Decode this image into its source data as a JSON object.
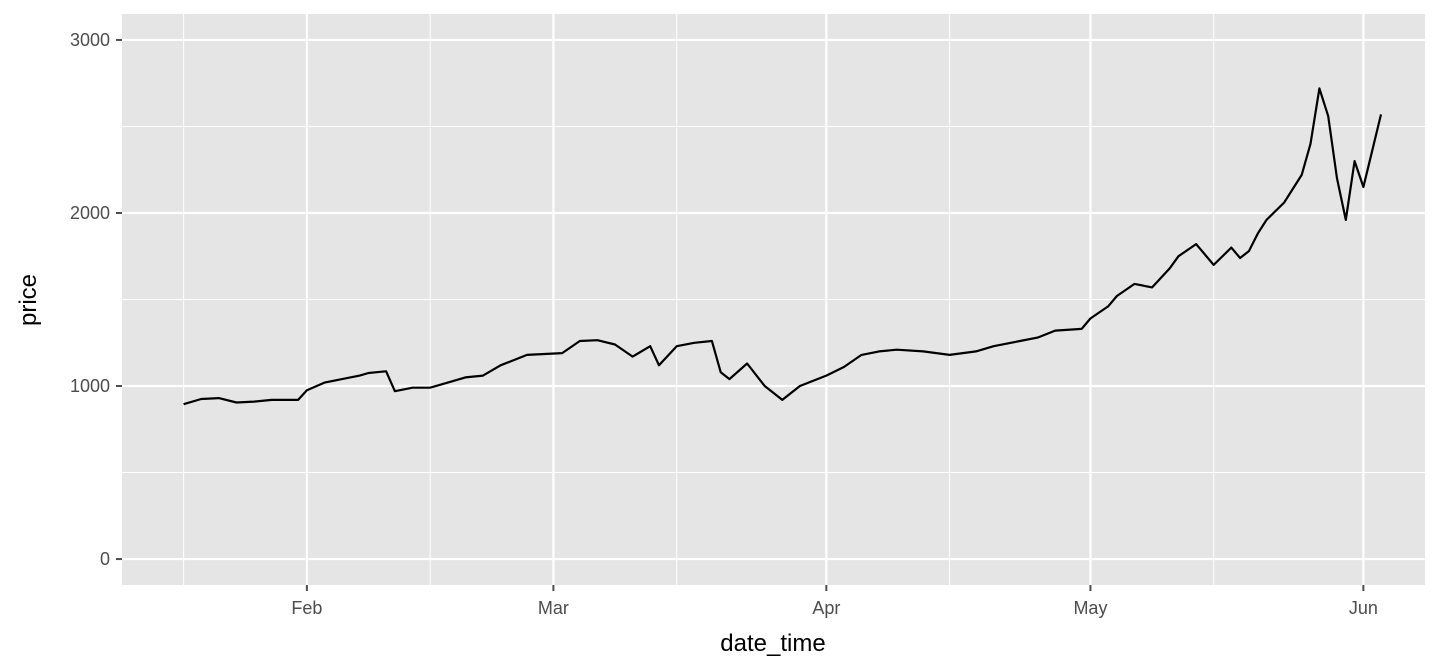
{
  "chart_data": {
    "type": "line",
    "xlabel": "date_time",
    "ylabel": "price",
    "xlim": [
      "2021-01-11",
      "2021-06-08"
    ],
    "ylim": [
      -150,
      3150
    ],
    "x_ticks": [
      {
        "date": "2021-02-01",
        "label": "Feb"
      },
      {
        "date": "2021-03-01",
        "label": "Mar"
      },
      {
        "date": "2021-04-01",
        "label": "Apr"
      },
      {
        "date": "2021-05-01",
        "label": "May"
      },
      {
        "date": "2021-06-01",
        "label": "Jun"
      }
    ],
    "x_minor_ticks": [
      "2021-01-18",
      "2021-02-15",
      "2021-03-15",
      "2021-04-15",
      "2021-05-15"
    ],
    "y_ticks": [
      0,
      1000,
      2000,
      3000
    ],
    "y_minor_ticks": [
      500,
      1500,
      2500
    ],
    "grid": true,
    "legend": "none",
    "colors": {
      "panel": "#e5e5e5",
      "grid": "#ffffff",
      "line": "#000000",
      "tick": "#4d4d4d"
    },
    "series": [
      {
        "x": [
          "2021-01-18",
          "2021-01-20",
          "2021-01-22",
          "2021-01-24",
          "2021-01-26",
          "2021-01-28",
          "2021-01-31",
          "2021-02-01",
          "2021-02-03",
          "2021-02-05",
          "2021-02-07",
          "2021-02-08",
          "2021-02-10",
          "2021-02-11",
          "2021-02-13",
          "2021-02-15",
          "2021-02-17",
          "2021-02-19",
          "2021-02-21",
          "2021-02-23",
          "2021-02-26",
          "2021-02-28",
          "2021-03-02",
          "2021-03-04",
          "2021-03-06",
          "2021-03-08",
          "2021-03-10",
          "2021-03-12",
          "2021-03-13",
          "2021-03-15",
          "2021-03-17",
          "2021-03-19",
          "2021-03-20",
          "2021-03-21",
          "2021-03-23",
          "2021-03-25",
          "2021-03-27",
          "2021-03-29",
          "2021-04-01",
          "2021-04-03",
          "2021-04-05",
          "2021-04-07",
          "2021-04-09",
          "2021-04-12",
          "2021-04-15",
          "2021-04-18",
          "2021-04-20",
          "2021-04-23",
          "2021-04-25",
          "2021-04-27",
          "2021-04-30",
          "2021-05-01",
          "2021-05-03",
          "2021-05-04",
          "2021-05-06",
          "2021-05-08",
          "2021-05-10",
          "2021-05-11",
          "2021-05-13",
          "2021-05-14",
          "2021-05-15",
          "2021-05-17",
          "2021-05-18",
          "2021-05-19",
          "2021-05-20",
          "2021-05-21",
          "2021-05-23",
          "2021-05-25",
          "2021-05-26",
          "2021-05-27",
          "2021-05-28",
          "2021-05-29",
          "2021-05-30",
          "2021-05-31",
          "2021-06-01",
          "2021-06-02",
          "2021-06-03"
        ],
        "values": [
          895,
          925,
          930,
          905,
          910,
          920,
          920,
          975,
          1020,
          1040,
          1060,
          1075,
          1085,
          970,
          990,
          990,
          1020,
          1050,
          1060,
          1120,
          1180,
          1185,
          1190,
          1260,
          1265,
          1240,
          1170,
          1230,
          1120,
          1230,
          1250,
          1260,
          1080,
          1040,
          1130,
          1000,
          920,
          1000,
          1060,
          1110,
          1180,
          1200,
          1210,
          1200,
          1180,
          1200,
          1230,
          1260,
          1280,
          1320,
          1330,
          1390,
          1460,
          1520,
          1590,
          1570,
          1680,
          1750,
          1820,
          1760,
          1700,
          1800,
          1740,
          1780,
          1880,
          1960,
          2060,
          2220,
          2400,
          2720,
          2560,
          2200,
          1960,
          2300,
          2150,
          2360,
          2570
        ]
      }
    ]
  }
}
